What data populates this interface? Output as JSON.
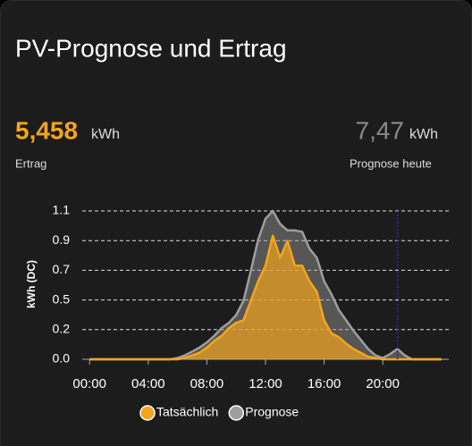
{
  "card": {
    "title": "PV-Prognose und Ertrag",
    "ertrag": {
      "value": "5,458",
      "unit": "kWh",
      "label": "Ertrag"
    },
    "prognose": {
      "value": "7,47",
      "unit": "kWh",
      "label": "Prognose heute"
    }
  },
  "chart_data": {
    "type": "area",
    "y_label": "kWh (DC)",
    "x": [
      0,
      5,
      5.5,
      6,
      6.5,
      7,
      7.5,
      8,
      8.5,
      9,
      9.5,
      10,
      10.5,
      11,
      11.5,
      12,
      12.5,
      13,
      13.5,
      14,
      14.5,
      15,
      15.5,
      16,
      16.5,
      17,
      17.5,
      18,
      18.5,
      19,
      19.5,
      20,
      20.5,
      21,
      21.5,
      22,
      24
    ],
    "series": [
      {
        "name": "Prognose",
        "color": "#9e9e9e",
        "values": [
          0,
          0,
          0,
          0.01,
          0.03,
          0.06,
          0.09,
          0.13,
          0.18,
          0.24,
          0.28,
          0.34,
          0.45,
          0.68,
          0.92,
          1.08,
          1.14,
          1.04,
          0.99,
          0.99,
          0.98,
          0.85,
          0.78,
          0.6,
          0.5,
          0.38,
          0.3,
          0.22,
          0.15,
          0.08,
          0.03,
          0.01,
          0.04,
          0.08,
          0.03,
          0,
          0
        ]
      },
      {
        "name": "Tatsächlich",
        "color": "#f2a51d",
        "values": [
          0,
          0,
          0,
          0,
          0.01,
          0.03,
          0.05,
          0.09,
          0.14,
          0.18,
          0.24,
          0.28,
          0.3,
          0.45,
          0.6,
          0.72,
          0.95,
          0.78,
          0.91,
          0.72,
          0.72,
          0.6,
          0.52,
          0.3,
          0.2,
          0.17,
          0.12,
          0.08,
          0.05,
          0.02,
          0.01,
          0,
          0,
          0,
          0,
          0,
          0
        ]
      }
    ],
    "legend_order": [
      1,
      0
    ],
    "now_x": 21,
    "xlim": [
      -0.5,
      24.5
    ],
    "xticks": [
      {
        "value": 0,
        "label": "00:00"
      },
      {
        "value": 4,
        "label": "04:00"
      },
      {
        "value": 8,
        "label": "08:00"
      },
      {
        "value": 12,
        "label": "12:00"
      },
      {
        "value": 16,
        "label": "16:00"
      },
      {
        "value": 20,
        "label": "20:00"
      }
    ],
    "ylim": [
      0,
      1.14
    ],
    "yticks": [
      {
        "value": 0,
        "label": "0.0"
      },
      {
        "value": 0.228,
        "label": "0.2"
      },
      {
        "value": 0.456,
        "label": "0.5"
      },
      {
        "value": 0.684,
        "label": "0.7"
      },
      {
        "value": 0.912,
        "label": "0.9"
      },
      {
        "value": 1.14,
        "label": "1.1"
      }
    ],
    "grid": true
  }
}
